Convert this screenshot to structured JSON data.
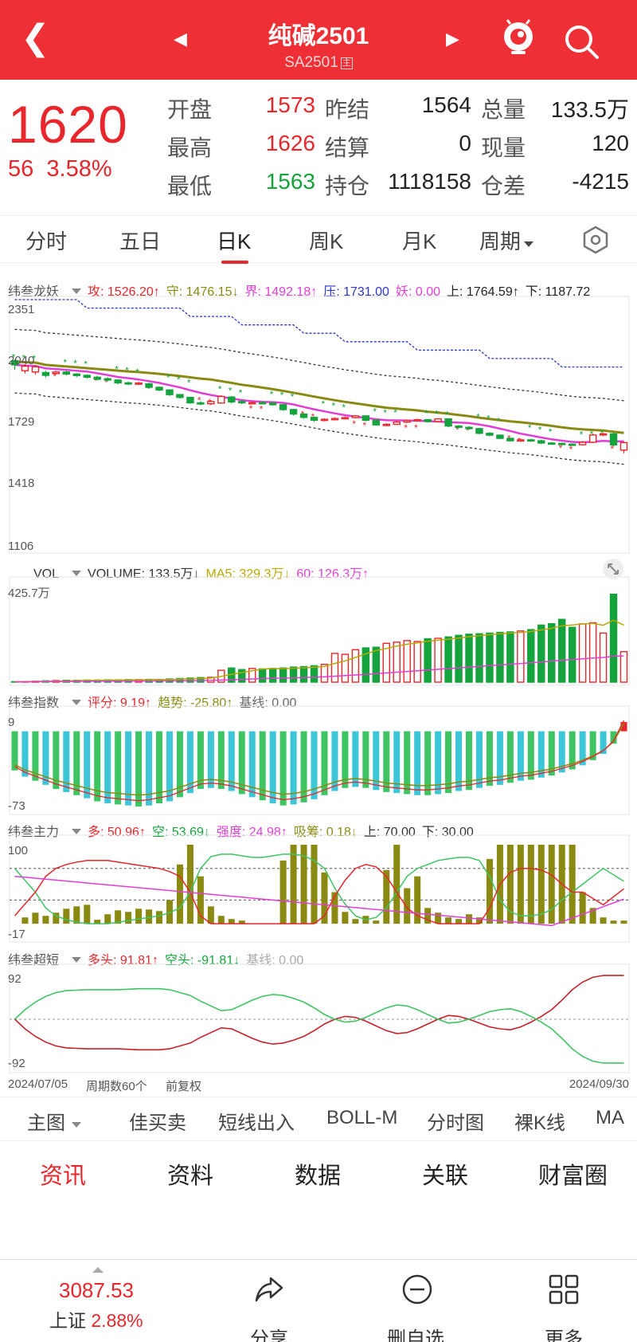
{
  "header": {
    "title": "纯碱2501",
    "code": "SA2501",
    "code_tag": "主"
  },
  "quote": {
    "price": "1620",
    "change": "56",
    "change_pct": "3.58%",
    "open_label": "开盘",
    "open": "1573",
    "high_label": "最高",
    "high": "1626",
    "low_label": "最低",
    "low": "1563",
    "preset_label": "昨结",
    "preset": "1564",
    "settle_label": "结算",
    "settle": "0",
    "oi_label": "持仓",
    "oi": "1118158",
    "vol_label": "总量",
    "vol": "133.5万",
    "cur_label": "现量",
    "cur": "120",
    "diff_label": "仓差",
    "diff": "-4215"
  },
  "tabs": [
    "分时",
    "五日",
    "日K",
    "周K",
    "月K",
    "周期"
  ],
  "ind1": {
    "name": "纬叁龙妖",
    "atk": "攻: 1526.20↑",
    "def": "守: 1476.15↓",
    "bound": "界: 1492.18↑",
    "press": "压: 1731.00",
    "yao": "妖: 0.00",
    "up": "上: 1764.59↑",
    "down": "下: 1187.72"
  },
  "ind2": {
    "name": "VOL",
    "vol": "VOLUME: 133.5万↓",
    "ma5": "MA5: 329.3万↓",
    "ma60": "60: 126.3万↑"
  },
  "ind3": {
    "name": "纬叁指数",
    "score": "评分: 9.19↑",
    "trend": "趋势: -25.80↑",
    "base": "基线: 0.00"
  },
  "ind4": {
    "name": "纬叁主力",
    "duo": "多: 50.96↑",
    "kong": "空: 53.69↓",
    "qd": "强度: 24.98↑",
    "xc": "吸筹: 0.18↓",
    "up": "上: 70.00",
    "down": "下: 30.00"
  },
  "ind5": {
    "name": "纬叁超短",
    "duo": "多头: 91.81↑",
    "kong": "空头: -91.81↓",
    "base": "基线: 0.00"
  },
  "footer": {
    "start": "2024/07/05",
    "count": "周期数60个",
    "adj": "前复权",
    "end": "2024/09/30"
  },
  "tools": [
    "主图",
    "佳买卖",
    "短线出入",
    "BOLL-M",
    "分时图",
    "裸K线",
    "MA"
  ],
  "sections": [
    "资讯",
    "资料",
    "数据",
    "关联",
    "财富圈"
  ],
  "bottom": {
    "index_value": "3087.53",
    "index_name": "上证",
    "index_pct": "2.88%",
    "share": "分享",
    "del": "删自选",
    "more": "更多"
  },
  "colors": {
    "up": "#e8262b",
    "down": "#14a33c",
    "header": "#ee2f35"
  },
  "chart_data": [
    {
      "type": "candlestick",
      "title": "纬叁龙妖",
      "ytick_labels": [
        "2351",
        "2040",
        "1729",
        "1418",
        "1106"
      ],
      "ylim": [
        1106,
        2351
      ],
      "candles": [
        [
          2058,
          2036,
          2065,
          2010
        ],
        [
          2005,
          2029,
          2040,
          1990
        ],
        [
          1998,
          2026,
          2035,
          1985
        ],
        [
          1995,
          1980,
          2004,
          1970
        ],
        [
          1990,
          1998,
          2005,
          1985
        ],
        [
          1998,
          1987,
          2004,
          1980
        ],
        [
          1987,
          1979,
          1992,
          1970
        ],
        [
          1980,
          1970,
          1986,
          1962
        ],
        [
          1970,
          1959,
          1978,
          1955
        ],
        [
          1962,
          1955,
          1970,
          1948
        ],
        [
          1955,
          1940,
          1960,
          1932
        ],
        [
          1940,
          1934,
          1946,
          1928
        ],
        [
          1934,
          1939,
          1945,
          1928
        ],
        [
          1935,
          1916,
          1940,
          1908
        ],
        [
          1916,
          1902,
          1920,
          1895
        ],
        [
          1902,
          1877,
          1905,
          1870
        ],
        [
          1877,
          1862,
          1880,
          1855
        ],
        [
          1862,
          1833,
          1866,
          1828
        ],
        [
          1833,
          1828,
          1842,
          1820
        ],
        [
          1828,
          1840,
          1848,
          1822
        ],
        [
          1832,
          1867,
          1873,
          1830
        ],
        [
          1864,
          1838,
          1870,
          1830
        ],
        [
          1840,
          1833,
          1846,
          1826
        ],
        [
          1833,
          1834,
          1840,
          1828
        ],
        [
          1834,
          1832,
          1840,
          1826
        ],
        [
          1832,
          1823,
          1836,
          1818
        ],
        [
          1823,
          1797,
          1826,
          1790
        ],
        [
          1797,
          1773,
          1800,
          1765
        ],
        [
          1773,
          1755,
          1778,
          1748
        ],
        [
          1755,
          1740,
          1760,
          1732
        ],
        [
          1740,
          1745,
          1750,
          1734
        ],
        [
          1745,
          1749,
          1755,
          1740
        ],
        [
          1749,
          1754,
          1760,
          1744
        ],
        [
          1754,
          1763,
          1768,
          1750
        ],
        [
          1763,
          1740,
          1767,
          1734
        ],
        [
          1740,
          1715,
          1744,
          1710
        ],
        [
          1715,
          1718,
          1724,
          1708
        ],
        [
          1718,
          1730,
          1736,
          1714
        ],
        [
          1730,
          1738,
          1744,
          1725
        ],
        [
          1738,
          1743,
          1748,
          1732
        ],
        [
          1743,
          1733,
          1747,
          1728
        ],
        [
          1733,
          1747,
          1752,
          1728
        ],
        [
          1747,
          1709,
          1750,
          1702
        ],
        [
          1709,
          1702,
          1714,
          1696
        ],
        [
          1702,
          1695,
          1708,
          1690
        ],
        [
          1695,
          1670,
          1700,
          1664
        ],
        [
          1670,
          1660,
          1676,
          1654
        ],
        [
          1660,
          1643,
          1664,
          1638
        ],
        [
          1643,
          1630,
          1646,
          1625
        ],
        [
          1630,
          1635,
          1640,
          1625
        ],
        [
          1635,
          1630,
          1640,
          1625
        ],
        [
          1630,
          1618,
          1636,
          1612
        ],
        [
          1618,
          1616,
          1624,
          1610
        ],
        [
          1616,
          1612,
          1620,
          1606
        ],
        [
          1612,
          1609,
          1616,
          1604
        ],
        [
          1609,
          1622,
          1628,
          1604
        ],
        [
          1622,
          1661,
          1668,
          1618
        ],
        [
          1661,
          1667,
          1672,
          1655
        ],
        [
          1667,
          1608,
          1674,
          1600
        ],
        [
          1580,
          1620,
          1626,
          1563
        ]
      ]
    },
    {
      "type": "bar",
      "title": "VOL",
      "ytick_labels": [
        "425.7万"
      ],
      "ylim": [
        0,
        425.7
      ],
      "values": [
        2,
        3,
        4,
        6,
        7,
        8,
        8,
        9,
        9,
        10,
        10,
        11,
        11,
        12,
        12,
        14,
        16,
        18,
        20,
        21,
        52,
        62,
        55,
        60,
        58,
        60,
        62,
        66,
        68,
        72,
        78,
        126,
        122,
        142,
        150,
        153,
        170,
        175,
        182,
        178,
        190,
        192,
        198,
        205,
        210,
        212,
        215,
        218,
        220,
        224,
        230,
        250,
        256,
        275,
        240,
        255,
        260,
        215,
        385,
        133.5
      ]
    },
    {
      "type": "bar",
      "title": "纬叁指数",
      "ytick_labels": [
        "9",
        "-73"
      ],
      "ylim": [
        -73,
        9
      ],
      "values": [
        -38,
        -44,
        -48,
        -52,
        -56,
        -59,
        -62,
        -65,
        -68,
        -70,
        -71,
        -72,
        -73,
        -72,
        -70,
        -68,
        -64,
        -60,
        -56,
        -55,
        -56,
        -58,
        -61,
        -64,
        -67,
        -70,
        -72,
        -71,
        -69,
        -66,
        -62,
        -58,
        -55,
        -54,
        -55,
        -57,
        -59,
        -60,
        -61,
        -62,
        -62,
        -61,
        -60,
        -58,
        -57,
        -55,
        -53,
        -52,
        -50,
        -48,
        -47,
        -45,
        -43,
        -40,
        -37,
        -33,
        -28,
        -22,
        -12,
        9
      ]
    },
    {
      "type": "bar",
      "title": "纬叁主力",
      "ytick_labels": [
        "100",
        "-17"
      ],
      "ylim": [
        -17,
        100
      ],
      "values": [
        0,
        8,
        14,
        10,
        14,
        19,
        22,
        24,
        5,
        12,
        17,
        15,
        19,
        18,
        16,
        30,
        75,
        100,
        60,
        22,
        10,
        6,
        4,
        0,
        0,
        0,
        80,
        100,
        100,
        100,
        65,
        40,
        15,
        6,
        10,
        4,
        68,
        100,
        45,
        60,
        20,
        14,
        8,
        6,
        12,
        8,
        82,
        100,
        100,
        100,
        100,
        100,
        100,
        100,
        100,
        40,
        20,
        8,
        4,
        4
      ]
    },
    {
      "type": "line",
      "title": "纬叁超短",
      "ytick_labels": [
        "92",
        "-92"
      ],
      "ylim": [
        -92,
        92
      ],
      "series": [
        {
          "name": "多头",
          "values": [
            0,
            -20,
            -36,
            -48,
            -56,
            -60,
            -61,
            -62,
            -62,
            -62,
            -62,
            -63,
            -64,
            -64,
            -64,
            -62,
            -56,
            -50,
            -38,
            -28,
            -18,
            -20,
            -30,
            -40,
            -48,
            -52,
            -50,
            -44,
            -36,
            -24,
            -10,
            0,
            6,
            4,
            -4,
            -14,
            -24,
            -30,
            -28,
            -20,
            -10,
            0,
            8,
            6,
            0,
            -8,
            -16,
            -20,
            -22,
            -16,
            -6,
            6,
            20,
            40,
            62,
            78,
            88,
            92,
            91.81,
            91.81
          ]
        },
        {
          "name": "空头",
          "values": [
            0,
            20,
            36,
            48,
            56,
            60,
            61,
            62,
            62,
            62,
            62,
            63,
            64,
            64,
            64,
            62,
            56,
            50,
            38,
            28,
            18,
            20,
            30,
            40,
            48,
            52,
            50,
            44,
            36,
            24,
            10,
            0,
            -6,
            -4,
            4,
            14,
            24,
            30,
            28,
            20,
            10,
            0,
            -8,
            -6,
            0,
            8,
            16,
            20,
            22,
            16,
            6,
            -6,
            -20,
            -40,
            -62,
            -78,
            -88,
            -92,
            -91.81,
            -91.81
          ]
        }
      ]
    }
  ]
}
